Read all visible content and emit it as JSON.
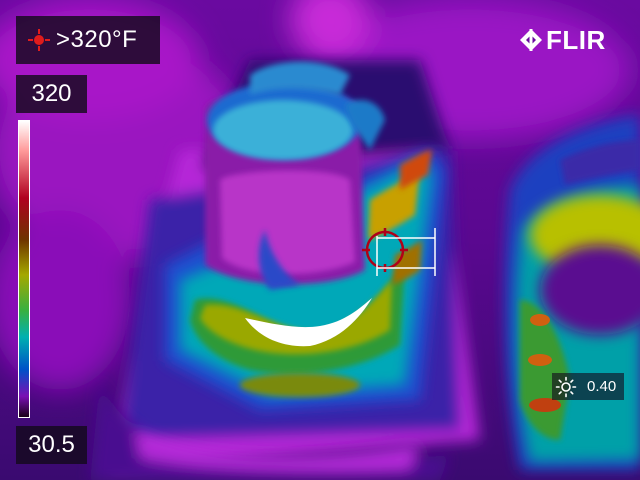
{
  "camera": {
    "spot_temperature": ">320°F",
    "scale_max": "320",
    "scale_min": "30.5",
    "emissivity": "0.40",
    "brand": "FLIR"
  },
  "icons": {
    "spot_meter": "crosshair-icon",
    "emissivity": "sun-icon",
    "logo": "flir-logo-icon"
  },
  "colors": {
    "palette": "iron",
    "overlay_text": "#ffffff",
    "reticle": "#b00018"
  }
}
